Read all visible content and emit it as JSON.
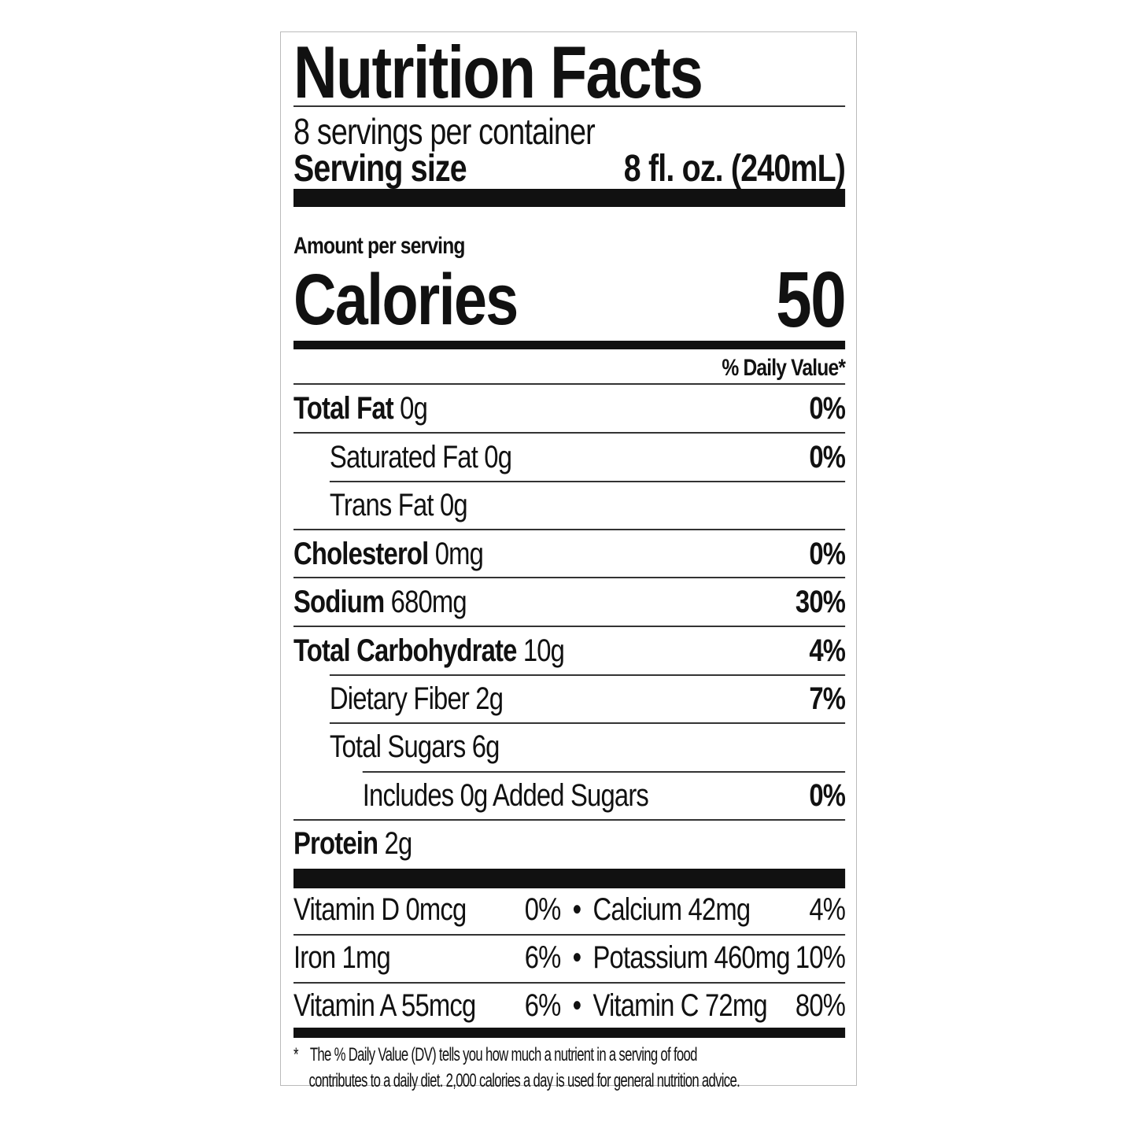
{
  "title": "Nutrition Facts",
  "servings_per_container": "8 servings per container",
  "serving_size": {
    "label": "Serving size",
    "value": "8 fl. oz. (240mL)"
  },
  "amount_per_serving": "Amount per serving",
  "calories": {
    "label": "Calories",
    "value": "50"
  },
  "daily_value_header": "% Daily Value*",
  "nutrients": [
    {
      "name": "Total Fat",
      "amount": "0g",
      "dv": "0%"
    },
    {
      "name": "Saturated Fat",
      "amount": "0g",
      "dv": "0%"
    },
    {
      "name": "Trans Fat",
      "amount": "0g",
      "dv": ""
    },
    {
      "name": "Cholesterol",
      "amount": "0mg",
      "dv": "0%"
    },
    {
      "name": "Sodium",
      "amount": "680mg",
      "dv": "30%"
    },
    {
      "name": "Total Carbohydrate",
      "amount": "10g",
      "dv": "4%"
    },
    {
      "name": "Dietary Fiber",
      "amount": "2g",
      "dv": "7%"
    },
    {
      "name": "Total Sugars",
      "amount": "6g",
      "dv": ""
    },
    {
      "name": "Includes 0g Added Sugars",
      "amount": "",
      "dv": "0%"
    },
    {
      "name": "Protein",
      "amount": "2g",
      "dv": ""
    }
  ],
  "vitamins": [
    {
      "left": "Vitamin D 0mcg",
      "left_dv": "0%",
      "right": "Calcium 42mg",
      "right_dv": "4%"
    },
    {
      "left": "Iron 1mg",
      "left_dv": "6%",
      "right": "Potassium 460mg",
      "right_dv": "10%"
    },
    {
      "left": "Vitamin A 55mcg",
      "left_dv": "6%",
      "right": "Vitamin C 72mg",
      "right_dv": "80%"
    }
  ],
  "bullet": "•",
  "footnote": {
    "asterisk": "*",
    "line1": "The % Daily Value (DV) tells you how much a nutrient in a serving of food",
    "line2": "contributes to a daily diet. 2,000 calories a day is used for general nutrition advice."
  }
}
